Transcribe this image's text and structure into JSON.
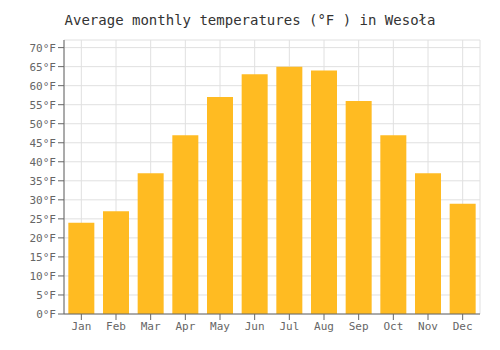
{
  "chart_data": {
    "type": "bar",
    "title": "Average monthly temperatures (°F ) in Wesoła",
    "categories": [
      "Jan",
      "Feb",
      "Mar",
      "Apr",
      "May",
      "Jun",
      "Jul",
      "Aug",
      "Sep",
      "Oct",
      "Nov",
      "Dec"
    ],
    "values": [
      24,
      27,
      37,
      47,
      57,
      63,
      65,
      64,
      56,
      47,
      37,
      29
    ],
    "color": "#FFBB22",
    "ylim": [
      0,
      72
    ],
    "yticks": [
      {
        "value": 0,
        "label": "0°F"
      },
      {
        "value": 5,
        "label": "5°F"
      },
      {
        "value": 10,
        "label": "10°F"
      },
      {
        "value": 15,
        "label": "15°F"
      },
      {
        "value": 20,
        "label": "20°F"
      },
      {
        "value": 25,
        "label": "25°F"
      },
      {
        "value": 30,
        "label": "30°F"
      },
      {
        "value": 35,
        "label": "35°F"
      },
      {
        "value": 40,
        "label": "40°F"
      },
      {
        "value": 45,
        "label": "45°F"
      },
      {
        "value": 50,
        "label": "50°F"
      },
      {
        "value": 55,
        "label": "55°F"
      },
      {
        "value": 60,
        "label": "60°F"
      },
      {
        "value": 65,
        "label": "65°F"
      },
      {
        "value": 70,
        "label": "70°F"
      }
    ],
    "grid": true
  }
}
